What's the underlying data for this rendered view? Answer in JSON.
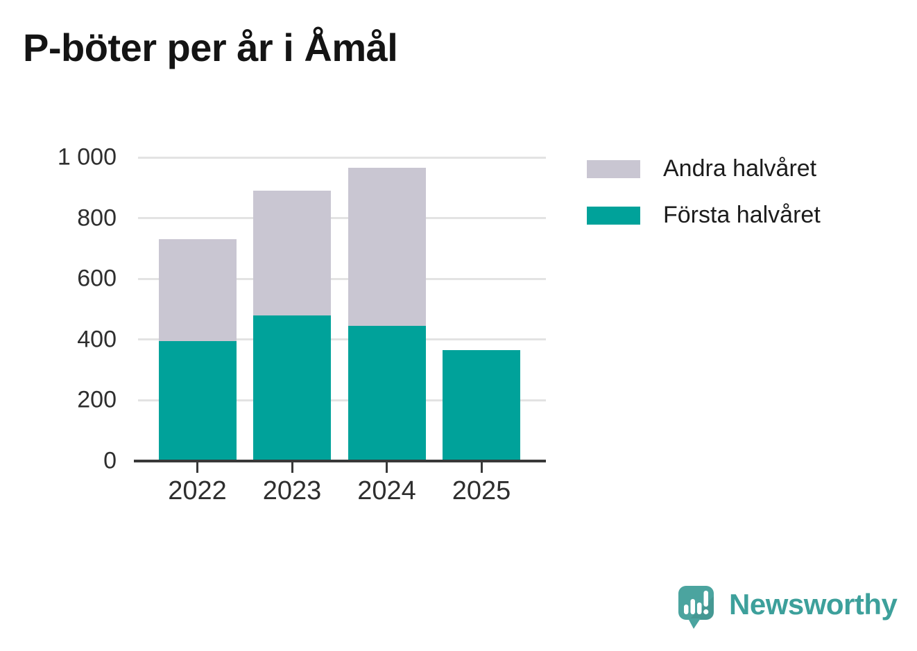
{
  "chart_data": {
    "type": "bar",
    "stacked": true,
    "title": "P-böter per år i Åmål",
    "categories": [
      "2022",
      "2023",
      "2024",
      "2025"
    ],
    "series": [
      {
        "name": "Första halvåret",
        "color": "#00a29a",
        "values": [
          395,
          480,
          445,
          365
        ]
      },
      {
        "name": "Andra halvåret",
        "color": "#c9c6d2",
        "values": [
          335,
          410,
          520,
          0
        ]
      }
    ],
    "totals": [
      730,
      890,
      965,
      365
    ],
    "ylim": [
      0,
      1000
    ],
    "yticks": [
      0,
      200,
      400,
      600,
      800,
      1000
    ],
    "ytick_labels": [
      "0",
      "200",
      "400",
      "600",
      "800",
      "1 000"
    ],
    "xlabel": "",
    "ylabel": "",
    "grid": "horizontal",
    "legend_position": "right-of-plot-top",
    "colors": {
      "axis_line": "#383838",
      "gridline": "#e3e3e3",
      "tick_text": "#2e2e2e"
    }
  },
  "branding": {
    "name": "Newsworthy",
    "logo_color": "#3da09b",
    "icon_color": "#4ba49f"
  }
}
